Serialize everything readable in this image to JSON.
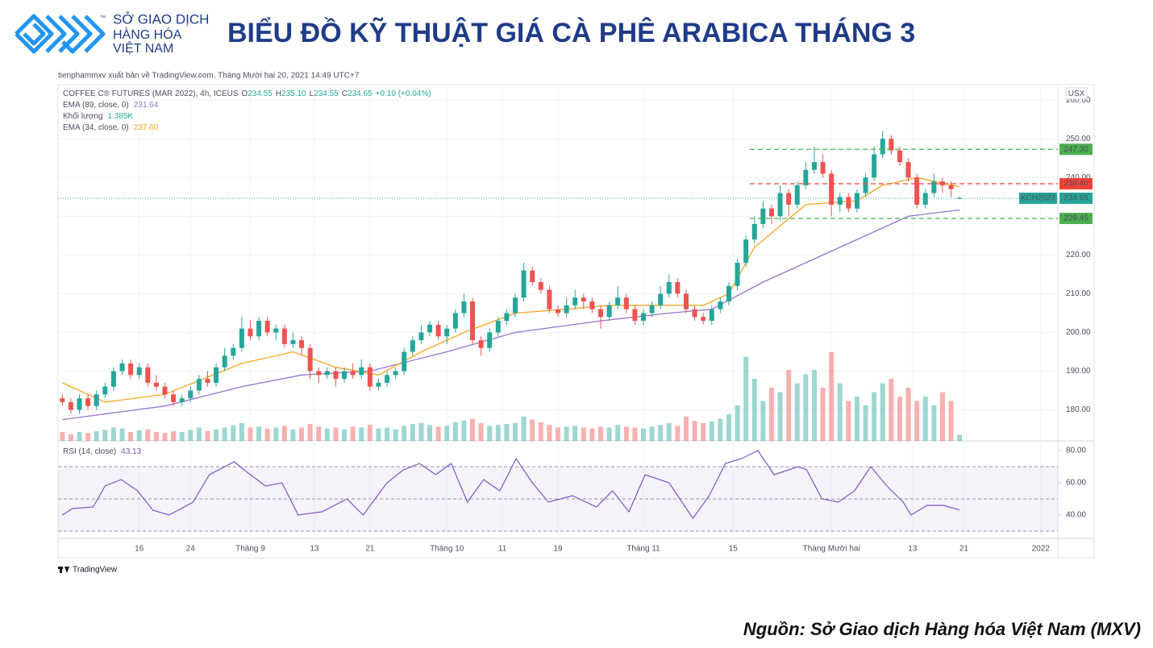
{
  "header": {
    "logo_lines": [
      "SỞ GIAO DỊCH",
      "HÀNG HÓA",
      "VIỆT NAM"
    ],
    "tm": "™",
    "title": "BIỂU ĐỒ KỸ THUẬT GIÁ CÀ PHÊ ARABICA THÁNG 3"
  },
  "chart_data": [
    {
      "type": "candlestick",
      "published": "tienphammxv xuất bản về TradingView.com, Tháng Mười hai 20, 2021 14:49 UTC+7",
      "symbol_line": "COFFEE C® FUTURES (MAR 2022), 4h, ICEUS",
      "ohlc_labels": [
        "O",
        "234.55",
        "H",
        "235.10",
        "L",
        "234.55",
        "C",
        "234.65",
        "+0.10 (+0.04%)"
      ],
      "currency": "USX",
      "up_color": "#26a69a",
      "down_color": "#ef5350",
      "x": [
        0,
        1,
        2,
        3,
        4,
        5,
        6,
        7,
        8,
        9,
        10,
        11,
        12,
        13,
        14,
        15,
        16,
        17,
        18,
        19,
        20,
        21,
        22,
        23,
        24,
        25,
        26,
        27,
        28,
        29,
        30,
        31,
        32,
        33,
        34,
        35,
        36,
        37,
        38,
        39,
        40,
        41,
        42,
        43,
        44,
        45,
        46,
        47,
        48,
        49,
        50,
        51,
        52,
        53,
        54,
        55,
        56,
        57,
        58,
        59,
        60,
        61,
        62,
        63,
        64,
        65,
        66,
        67,
        68,
        69,
        70,
        71,
        72,
        73,
        74,
        75,
        76,
        77,
        78,
        79,
        80,
        81,
        82,
        83,
        84,
        85,
        86,
        87,
        88,
        89,
        90,
        91,
        92,
        93,
        94,
        95,
        96,
        97,
        98,
        99,
        100,
        101,
        102,
        103,
        104,
        105
      ],
      "open": [
        183,
        182,
        180,
        183,
        181,
        184,
        186,
        190,
        192,
        189,
        191,
        187,
        186,
        184,
        182,
        183,
        185,
        188,
        187,
        191,
        194,
        196,
        201,
        199,
        203,
        200,
        201,
        197,
        198,
        196,
        190,
        189,
        190,
        188,
        190,
        189,
        191,
        186,
        187,
        189,
        190,
        195,
        198,
        200,
        202,
        199,
        201,
        205,
        208,
        198,
        196,
        200,
        203,
        205,
        209,
        216,
        213,
        211,
        206,
        205,
        207,
        209,
        208,
        206,
        204,
        207,
        209,
        206,
        203,
        205,
        207,
        210,
        213,
        210,
        206,
        204,
        203,
        206,
        208,
        212,
        218,
        224,
        228,
        232,
        230,
        236,
        233,
        238,
        242,
        244,
        241,
        233,
        235,
        232,
        236,
        240,
        246,
        250,
        247,
        244,
        240,
        233,
        236,
        239,
        238,
        234.55
      ],
      "high": [
        184,
        183,
        184,
        184,
        185,
        187,
        191,
        193,
        193,
        192,
        192,
        189,
        187,
        185,
        184,
        186,
        189,
        190,
        192,
        196,
        197,
        204,
        203,
        204,
        204,
        202,
        202,
        200,
        199,
        197,
        191,
        191,
        191,
        191,
        192,
        193,
        192,
        188,
        190,
        191,
        196,
        199,
        202,
        203,
        203,
        202,
        206,
        210,
        209,
        199,
        201,
        204,
        206,
        210,
        218,
        217,
        214,
        212,
        207,
        209,
        211,
        210,
        209,
        207,
        208,
        212,
        210,
        207,
        206,
        208,
        212,
        215,
        214,
        211,
        207,
        205,
        207,
        209,
        213,
        219,
        225,
        230,
        234,
        233,
        238,
        237,
        239,
        244,
        248,
        246,
        242,
        236,
        236,
        237,
        241,
        248,
        252,
        251,
        248,
        245,
        241,
        237,
        241,
        240,
        239,
        235.1
      ],
      "low": [
        181,
        179,
        179,
        180,
        180,
        183,
        185,
        189,
        188,
        188,
        186,
        185,
        183,
        181,
        181,
        182,
        184,
        186,
        186,
        190,
        193,
        195,
        198,
        198,
        199,
        198,
        196,
        196,
        194,
        188,
        187,
        188,
        186,
        187,
        188,
        188,
        185,
        185,
        186,
        188,
        189,
        194,
        197,
        199,
        198,
        197,
        200,
        204,
        197,
        194,
        195,
        199,
        202,
        204,
        208,
        212,
        210,
        205,
        204,
        204,
        206,
        206,
        205,
        201,
        203,
        206,
        205,
        202,
        202,
        204,
        206,
        209,
        209,
        205,
        203,
        202,
        202,
        205,
        207,
        211,
        217,
        223,
        227,
        228,
        229,
        230,
        232,
        237,
        241,
        240,
        230,
        231,
        231,
        231,
        235,
        239,
        245,
        246,
        243,
        239,
        232,
        232,
        235,
        236,
        235,
        234.55
      ],
      "close": [
        182,
        180,
        183,
        181,
        184,
        186,
        190,
        192,
        189,
        191,
        187,
        186,
        184,
        182,
        183,
        185,
        188,
        187,
        191,
        194,
        196,
        201,
        199,
        203,
        200,
        201,
        197,
        198,
        196,
        190,
        189,
        190,
        188,
        190,
        189,
        191,
        186,
        187,
        189,
        190,
        195,
        198,
        200,
        202,
        199,
        201,
        205,
        208,
        198,
        196,
        200,
        203,
        205,
        209,
        216,
        213,
        211,
        206,
        205,
        207,
        209,
        208,
        206,
        204,
        207,
        209,
        206,
        203,
        205,
        207,
        210,
        213,
        210,
        206,
        204,
        203,
        206,
        208,
        212,
        218,
        224,
        228,
        232,
        230,
        236,
        233,
        238,
        242,
        244,
        241,
        233,
        235,
        232,
        236,
        240,
        246,
        250,
        247,
        244,
        240,
        233,
        236,
        239,
        238,
        237,
        234.65
      ],
      "volume": {
        "name": "Khối lượng",
        "label_value": "1.385K",
        "values": [
          2,
          1.5,
          2,
          1.8,
          2.2,
          2.5,
          3,
          2.8,
          2,
          2.4,
          2.6,
          2,
          1.8,
          2.2,
          2,
          2.5,
          3,
          2.2,
          2.6,
          3,
          3.5,
          4,
          3,
          3.2,
          2.8,
          3,
          3.4,
          2.6,
          3,
          3.8,
          3.2,
          2.8,
          3,
          2.6,
          3.2,
          3,
          3.6,
          2.8,
          3,
          2.6,
          3.4,
          3.8,
          4,
          3.6,
          3.2,
          3.4,
          4.2,
          4.6,
          5,
          4,
          3.4,
          3.6,
          3.8,
          4,
          5.5,
          4.8,
          4.2,
          3.6,
          3,
          3.2,
          3.4,
          3,
          2.8,
          3.2,
          3,
          3.6,
          3.2,
          3,
          2.8,
          3.2,
          3.6,
          4,
          3.4,
          5.5,
          4.5,
          4,
          4.4,
          5,
          6,
          8,
          19,
          14,
          9,
          12,
          11,
          16,
          13,
          15,
          16,
          12,
          20,
          13,
          9,
          10,
          8,
          11,
          13,
          14,
          10,
          12,
          9,
          10,
          8,
          11,
          9,
          1.385
        ]
      },
      "series": [
        {
          "name": "EMA (89, close, 0)",
          "label_value": "231.64",
          "color": "#9575cd",
          "x": [
            0,
            12,
            21,
            28,
            36,
            45,
            53,
            63,
            71,
            76,
            82,
            89,
            95,
            99,
            105
          ],
          "values": [
            177.5,
            181,
            186,
            189,
            190,
            195,
            200,
            203,
            205,
            206,
            213,
            220,
            226,
            230,
            231.64
          ]
        },
        {
          "name": "EMA (34, close, 0)",
          "label_value": "237.60",
          "color": "#f5a623",
          "x": [
            0,
            5,
            12,
            21,
            27,
            32,
            37,
            42,
            47,
            53,
            59,
            64,
            70,
            75,
            78,
            81,
            87,
            93,
            96,
            100,
            105
          ],
          "values": [
            187,
            182,
            184,
            192,
            195,
            191,
            189,
            195,
            200,
            205,
            206,
            207,
            207,
            207,
            210,
            222,
            233,
            234,
            238,
            240,
            237.6
          ]
        }
      ],
      "levels": [
        {
          "value": 247.3,
          "label": "247.30",
          "color": "#4caf50"
        },
        {
          "value": 238.4,
          "label": "238.40",
          "color": "#f44336"
        },
        {
          "value": 229.45,
          "label": "229.45",
          "color": "#4caf50"
        }
      ],
      "last_price": {
        "symbol": "KCH2022",
        "value": 234.65,
        "label": "234.65",
        "color": "#26a69a"
      },
      "xlim": [
        -0.5,
        116.5
      ],
      "xticks": [
        {
          "value": 9,
          "label": "16"
        },
        {
          "value": 15,
          "label": "24"
        },
        {
          "value": 22,
          "label": "Tháng 9"
        },
        {
          "value": 29.5,
          "label": "13"
        },
        {
          "value": 36,
          "label": "21"
        },
        {
          "value": 45,
          "label": "Tháng 10"
        },
        {
          "value": 51.5,
          "label": "11"
        },
        {
          "value": 58,
          "label": "19"
        },
        {
          "value": 68,
          "label": "Tháng 11"
        },
        {
          "value": 78.5,
          "label": "15"
        },
        {
          "value": 90,
          "label": "Tháng Mười hai"
        },
        {
          "value": 99.5,
          "label": "13"
        },
        {
          "value": 105.5,
          "label": "21"
        },
        {
          "value": 114.5,
          "label": "2022"
        }
      ],
      "ylim": [
        172,
        264
      ],
      "yticks": [
        {
          "value": 180,
          "label": "180.00"
        },
        {
          "value": 190,
          "label": "190.00"
        },
        {
          "value": 200,
          "label": "200.00"
        },
        {
          "value": 210,
          "label": "210.00"
        },
        {
          "value": 220,
          "label": "220.00"
        },
        {
          "value": 230,
          "label": "230.00"
        },
        {
          "value": 240,
          "label": "240.00"
        },
        {
          "value": 250,
          "label": "250.00"
        },
        {
          "value": 260,
          "label": "260.00"
        }
      ],
      "grid": true
    },
    {
      "type": "line",
      "name": "RSI (14, close)",
      "label_value": "43.13",
      "color": "#7e57c2",
      "xlim": [
        -0.5,
        116.5
      ],
      "x": [
        0,
        1.2,
        3.6,
        5,
        6.9,
        8.8,
        10.6,
        12.5,
        15.3,
        17.2,
        20.1,
        22,
        23.8,
        25.7,
        27.6,
        30.4,
        33.3,
        35.2,
        38,
        39.9,
        41.8,
        43.7,
        45.5,
        47.4,
        49.3,
        51.2,
        53.1,
        55,
        56.9,
        59.7,
        62.5,
        64.4,
        66.3,
        68.2,
        71,
        72.9,
        73.8,
        75.7,
        77.6,
        79.5,
        81.4,
        83.3,
        86.1,
        87.1,
        88.9,
        90.8,
        92.7,
        94.6,
        96.5,
        98.4,
        99.3,
        101.2,
        103.1,
        105
      ],
      "values": [
        40,
        44,
        45,
        58,
        62,
        55,
        43,
        40,
        48,
        65,
        73,
        65,
        58,
        60,
        40,
        42,
        50,
        40,
        60,
        68,
        72,
        65,
        72,
        48,
        62,
        55,
        75,
        60,
        48,
        52,
        45,
        55,
        42,
        65,
        60,
        45,
        38,
        52,
        72,
        75,
        80,
        65,
        70,
        68,
        50,
        48,
        55,
        70,
        58,
        48,
        40,
        46,
        46,
        43.13
      ],
      "levels": [
        70,
        50,
        30
      ],
      "ylim": [
        25.5,
        86
      ],
      "yticks": [
        {
          "value": 40,
          "label": "40.00"
        },
        {
          "value": 60,
          "label": "60.00"
        },
        {
          "value": 80,
          "label": "80.00"
        }
      ],
      "grid": true
    }
  ],
  "footer": {
    "brand": "TradingView",
    "source": "Nguồn: Sở Giao dịch Hàng hóa Việt Nam (MXV)"
  }
}
